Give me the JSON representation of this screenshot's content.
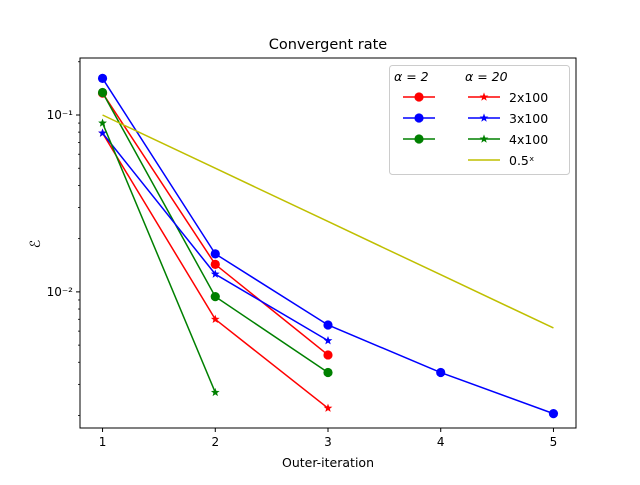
{
  "chart_data": {
    "type": "line",
    "title": "Convergent rate",
    "xlabel": "Outer-iteration",
    "ylabel": "ℰ",
    "xlim": [
      0.8,
      5.2
    ],
    "ylim": [
      0.0017,
      0.21
    ],
    "yscale": "log",
    "xticks": [
      1,
      2,
      3,
      4,
      5
    ],
    "xtick_labels": [
      "1",
      "2",
      "3",
      "4",
      "5"
    ],
    "yticks": [
      0.01,
      0.1
    ],
    "ytick_labels": [
      "10⁻²",
      "10⁻¹"
    ],
    "grid": false,
    "legend_placement": "top-right",
    "legend": {
      "column_headers": [
        "α = 2",
        "α = 20"
      ],
      "labels": [
        "2x100",
        "3x100",
        "4x100",
        "0.5ˣ"
      ]
    },
    "series": [
      {
        "name": "α = 2, 2x100",
        "color": "#ff0000",
        "marker": "circle",
        "x": [
          1,
          2,
          3
        ],
        "y": [
          0.133,
          0.0143,
          0.0044
        ]
      },
      {
        "name": "α = 2, 3x100",
        "color": "#0000ff",
        "marker": "circle",
        "x": [
          1,
          2,
          3,
          4,
          5
        ],
        "y": [
          0.161,
          0.0164,
          0.0065,
          0.0035,
          0.00205
        ]
      },
      {
        "name": "α = 2, 4x100",
        "color": "#008000",
        "marker": "circle",
        "x": [
          1,
          2,
          3
        ],
        "y": [
          0.134,
          0.0094,
          0.0035
        ]
      },
      {
        "name": "α = 20, 2x100",
        "color": "#ff0000",
        "marker": "star",
        "x": [
          1,
          2,
          3
        ],
        "y": [
          0.079,
          0.007,
          0.0022
        ]
      },
      {
        "name": "α = 20, 3x100",
        "color": "#0000ff",
        "marker": "star",
        "x": [
          1,
          2,
          3
        ],
        "y": [
          0.079,
          0.0126,
          0.0053
        ]
      },
      {
        "name": "α = 20, 4x100",
        "color": "#008000",
        "marker": "star",
        "x": [
          1,
          2
        ],
        "y": [
          0.09,
          0.0027
        ]
      },
      {
        "name": "0.5ˣ",
        "color": "#bfbf00",
        "marker": "none",
        "x": [
          1,
          2,
          3,
          4,
          5
        ],
        "y": [
          0.1,
          0.05,
          0.025,
          0.0125,
          0.00625
        ]
      }
    ]
  }
}
